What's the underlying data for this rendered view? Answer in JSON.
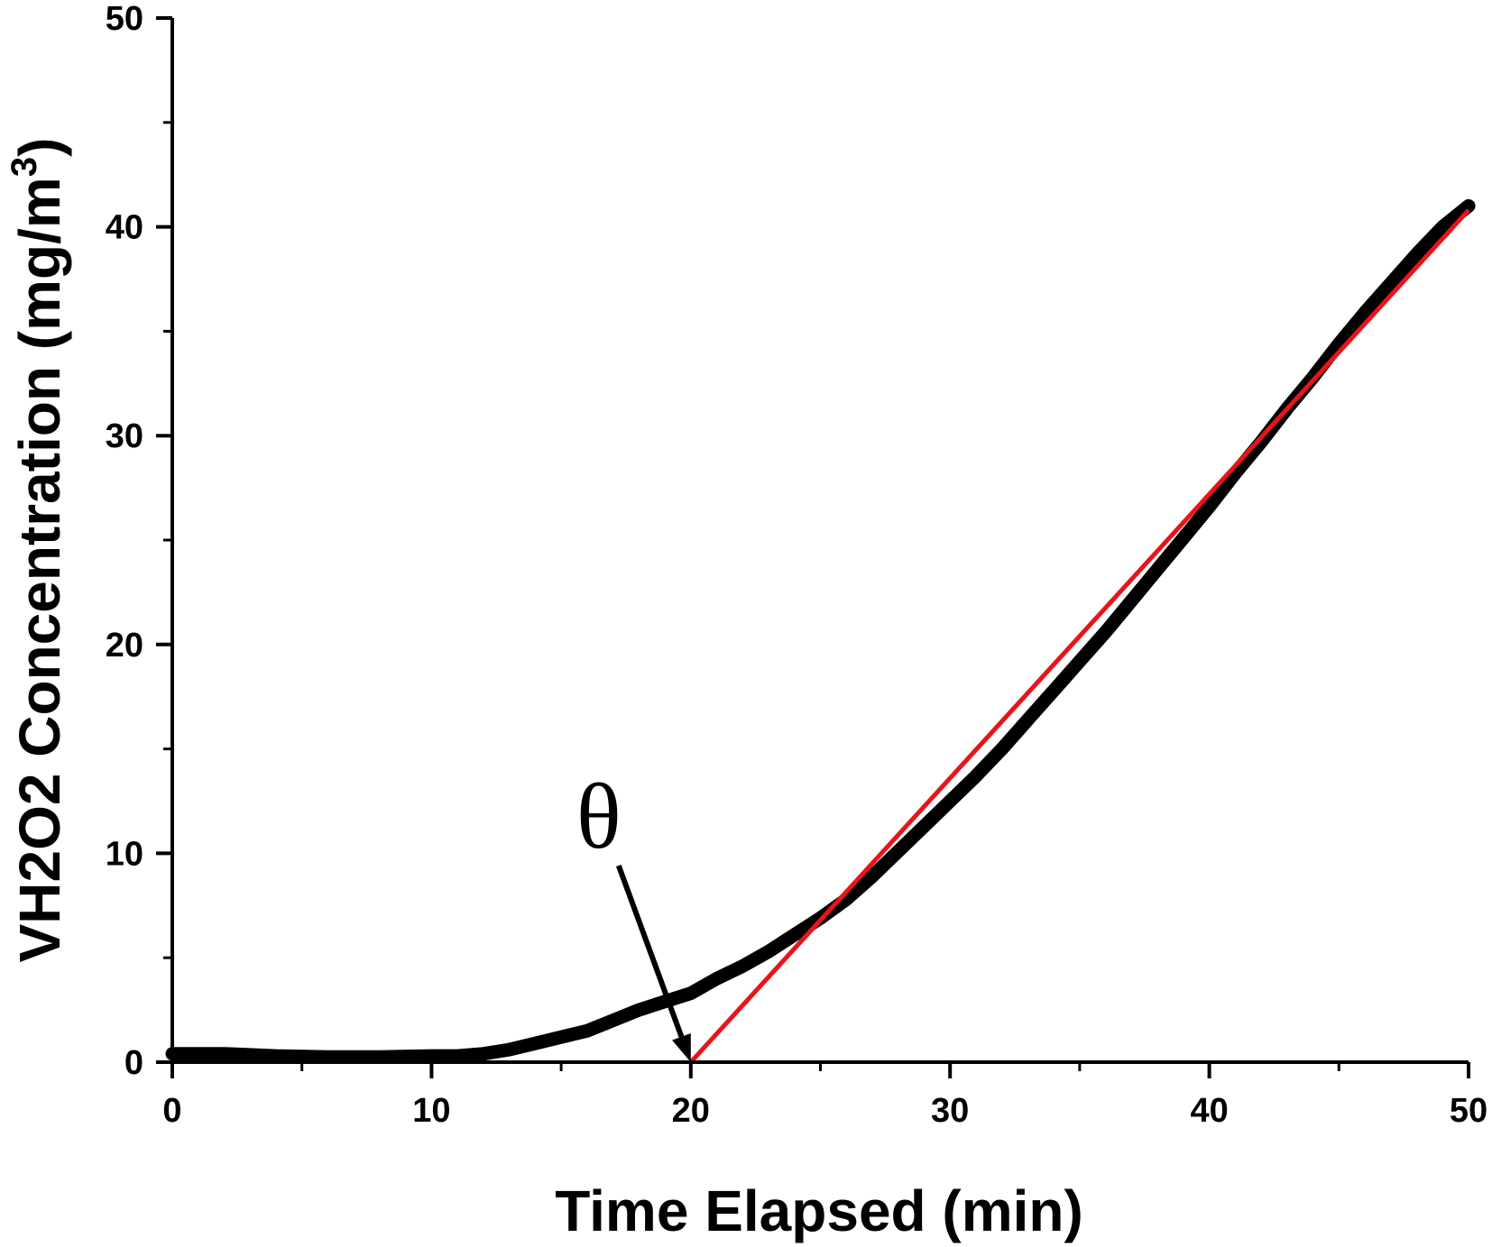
{
  "chart_data": {
    "type": "line",
    "title": "",
    "xlabel": "Time Elapsed (min)",
    "ylabel_main": "VH2O2 Concentration (mg/m",
    "ylabel_sup": "3",
    "ylabel_close": ")",
    "xlim": [
      0,
      50
    ],
    "ylim": [
      0,
      50
    ],
    "x_ticks": [
      "0",
      "10",
      "20",
      "30",
      "40",
      "50"
    ],
    "y_ticks": [
      "0",
      "10",
      "20",
      "30",
      "40",
      "50"
    ],
    "grid": false,
    "legend": "none",
    "series": [
      {
        "style": "measured",
        "color": "#000000",
        "x": [
          0,
          2,
          4,
          6,
          8,
          10,
          11,
          12,
          13,
          14,
          15,
          16,
          17,
          18,
          19,
          20,
          21,
          22,
          23,
          24,
          25,
          26,
          27,
          28,
          29,
          30,
          31,
          32,
          33,
          34,
          35,
          36,
          37,
          38,
          39,
          40,
          41,
          42,
          43,
          44,
          45,
          46,
          47,
          48,
          49,
          50
        ],
        "y": [
          0.4,
          0.4,
          0.3,
          0.25,
          0.25,
          0.3,
          0.3,
          0.4,
          0.6,
          0.9,
          1.2,
          1.5,
          2.0,
          2.5,
          2.9,
          3.3,
          4.0,
          4.6,
          5.3,
          6.1,
          6.9,
          7.8,
          8.9,
          10.1,
          11.3,
          12.5,
          13.7,
          15.0,
          16.4,
          17.8,
          19.2,
          20.6,
          22.1,
          23.6,
          25.1,
          26.6,
          28.2,
          29.7,
          31.3,
          32.8,
          34.4,
          35.9,
          37.3,
          38.7,
          40.0,
          41.0
        ]
      },
      {
        "style": "tangent-fit",
        "color": "#e8141b",
        "x": [
          20,
          50
        ],
        "y": [
          0,
          40.8
        ]
      }
    ],
    "annotations": [
      {
        "text": "θ",
        "arrow_to_x": 20,
        "arrow_to_y": 0
      }
    ]
  }
}
